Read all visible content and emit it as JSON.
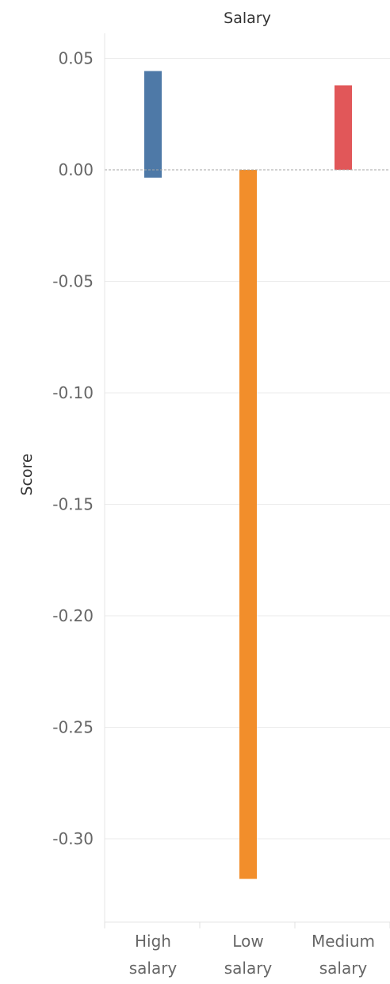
{
  "chart_data": {
    "type": "bar",
    "title": "Salary",
    "xlabel": "",
    "ylabel": "Score",
    "ylim": [
      -0.34,
      0.062
    ],
    "yticks": [
      0.05,
      0.0,
      -0.05,
      -0.1,
      -0.15,
      -0.2,
      -0.25,
      -0.3
    ],
    "ytick_labels": [
      "0.05",
      "0.00",
      "-0.05",
      "-0.10",
      "-0.15",
      "-0.20",
      "-0.25",
      "-0.30"
    ],
    "grid": true,
    "legend": "none",
    "zero_line": "dashed",
    "categories": [
      {
        "lines": [
          "High",
          "salary"
        ]
      },
      {
        "lines": [
          "Low",
          "salary"
        ]
      },
      {
        "lines": [
          "Medium",
          "salary"
        ]
      }
    ],
    "bars": [
      {
        "category": "High salary",
        "low": -0.0035,
        "high": 0.0443,
        "color": "#4e79a7"
      },
      {
        "category": "Low salary",
        "low": -0.318,
        "high": 0.0,
        "color": "#f28e2b"
      },
      {
        "category": "Medium salary",
        "low": 0.0,
        "high": 0.0379,
        "color": "#e15759"
      }
    ]
  }
}
